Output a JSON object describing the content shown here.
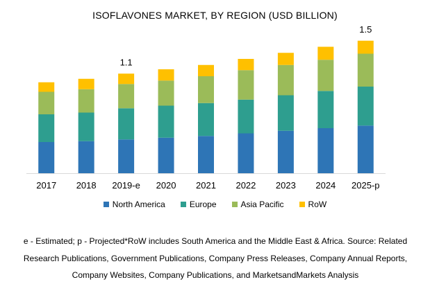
{
  "chart_data": {
    "type": "bar",
    "stacked": true,
    "title": "ISOFLAVONES MARKET, BY REGION (USD BILLION)",
    "categories": [
      "2017",
      "2018",
      "2019-e",
      "2020",
      "2021",
      "2022",
      "2023",
      "2024",
      "2025-p"
    ],
    "series": [
      {
        "name": "North America",
        "color": "#2E75B6",
        "values": [
          0.36,
          0.37,
          0.39,
          0.41,
          0.43,
          0.46,
          0.49,
          0.52,
          0.55
        ]
      },
      {
        "name": "Europe",
        "color": "#2E9E8F",
        "values": [
          0.32,
          0.33,
          0.36,
          0.37,
          0.38,
          0.39,
          0.41,
          0.43,
          0.45
        ]
      },
      {
        "name": "Asia Pacific",
        "color": "#9BBB59",
        "values": [
          0.26,
          0.27,
          0.28,
          0.29,
          0.31,
          0.34,
          0.35,
          0.36,
          0.38
        ]
      },
      {
        "name": "RoW",
        "color": "#FFC000",
        "values": [
          0.11,
          0.12,
          0.12,
          0.13,
          0.13,
          0.13,
          0.14,
          0.15,
          0.15
        ]
      }
    ],
    "data_labels": [
      {
        "category": "2019-e",
        "text": "1.1"
      },
      {
        "category": "2025-p",
        "text": "1.5"
      }
    ],
    "ylim": [
      0,
      1.6
    ],
    "grid": false,
    "legend_position": "bottom"
  },
  "footnote": {
    "line1": "e - Estimated; p - Projected*RoW includes South America and the Middle East & Africa. Source: Related",
    "line2": "Research Publications, Government Publications, Company Press Releases, Company Annual Reports,",
    "line3": "Company Websites, Company Publications, and MarketsandMarkets Analysis"
  }
}
